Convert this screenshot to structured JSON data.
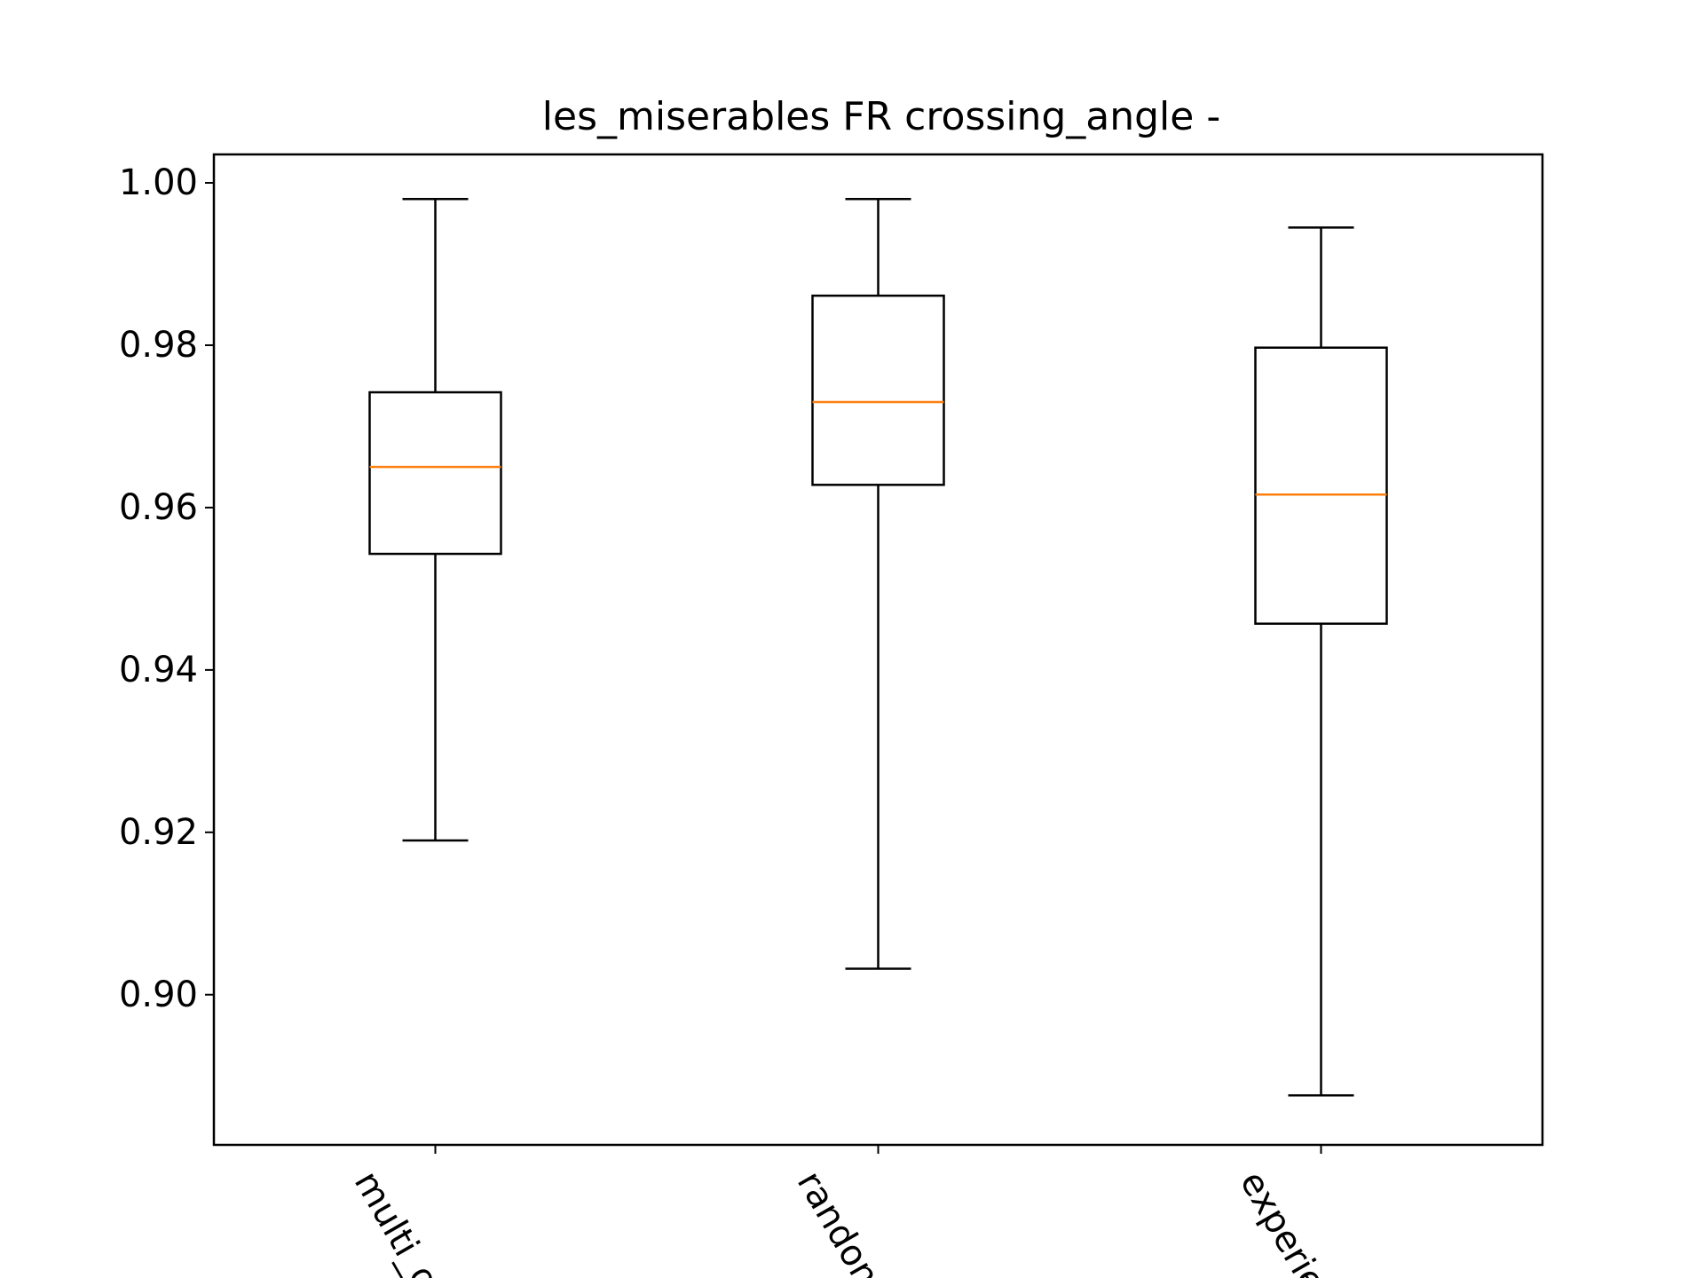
{
  "chart_data": {
    "type": "box",
    "title": "les_miserables FR crossing_angle -",
    "xlabel": "",
    "ylabel": "",
    "ylim": [
      0.8815,
      1.0035
    ],
    "yticks": [
      0.9,
      0.92,
      0.94,
      0.96,
      0.98,
      1.0
    ],
    "ytick_labels": [
      "0.90",
      "0.92",
      "0.94",
      "0.96",
      "0.98",
      "1.00"
    ],
    "categories": [
      "multi_o",
      "randon",
      "experie"
    ],
    "boxes": [
      {
        "whisker_low": 0.919,
        "q1": 0.9543,
        "median": 0.965,
        "q3": 0.9742,
        "whisker_high": 0.998
      },
      {
        "whisker_low": 0.9032,
        "q1": 0.9628,
        "median": 0.973,
        "q3": 0.9861,
        "whisker_high": 0.998
      },
      {
        "whisker_low": 0.8876,
        "q1": 0.9457,
        "median": 0.9616,
        "q3": 0.9797,
        "whisker_high": 0.9945
      }
    ],
    "grid": false,
    "legend": "none",
    "colors": {
      "box": "#000000",
      "median": "#ff7f0e",
      "background": "#ffffff"
    }
  }
}
